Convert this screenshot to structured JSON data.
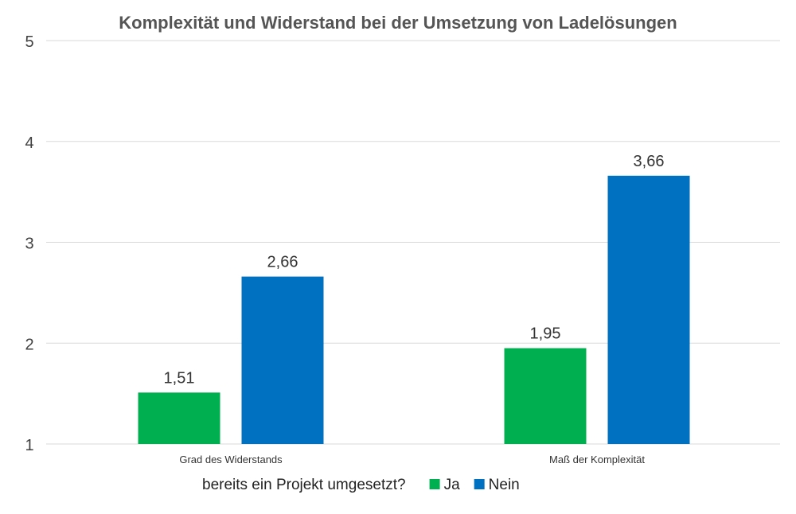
{
  "chart_data": {
    "type": "bar",
    "title": "Komplexität und Widerstand bei der Umsetzung von Ladelösungen",
    "categories": [
      "Grad des Widerstands",
      "Maß der Komplexität"
    ],
    "series": [
      {
        "name": "Ja",
        "values": [
          1.51,
          1.95
        ],
        "labels": [
          "1,51",
          "1,95"
        ],
        "color": "#00b050"
      },
      {
        "name": "Nein",
        "values": [
          2.66,
          3.66
        ],
        "labels": [
          "2,66",
          "3,66"
        ],
        "color": "#0070c0"
      }
    ],
    "ylim": [
      1,
      5
    ],
    "yticks": [
      1,
      2,
      3,
      4,
      5
    ],
    "ytick_labels": [
      "1",
      "2",
      "3",
      "4",
      "5"
    ],
    "grid": true,
    "legend": {
      "title": "bereits ein Projekt umgesetzt?",
      "placement": "bottom"
    },
    "xlabel": "",
    "ylabel": ""
  }
}
